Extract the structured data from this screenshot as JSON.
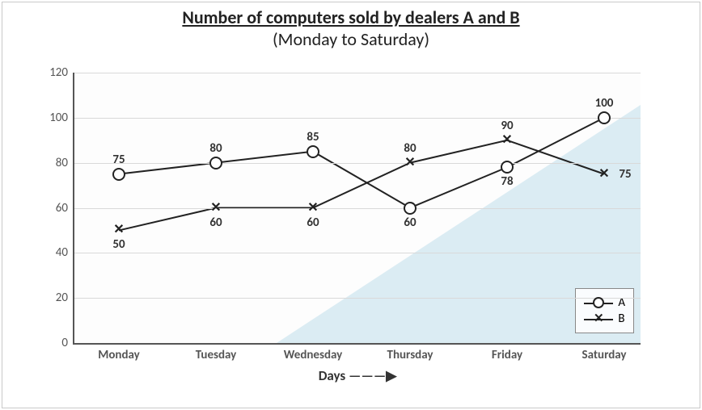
{
  "title": {
    "main": "Number of computers sold by dealers A and B",
    "sub": "(Monday to Saturday)",
    "main_fontsize": 22,
    "sub_fontsize": 22,
    "underline_main": true
  },
  "chart": {
    "type": "line",
    "categories": [
      "Monday",
      "Tuesday",
      "Wednesday",
      "Thursday",
      "Friday",
      "Saturday"
    ],
    "ylim": [
      0,
      120
    ],
    "ytick_step": 20,
    "gridline_color": "#d9d9d9",
    "axis_color": "#555555",
    "background_color": "#fdfdfd",
    "bluewash_color": "#dbecf3",
    "line_color": "#222222",
    "line_width": 2,
    "xaxis_title": "Days  ———▶",
    "label_fontsize": 15,
    "series": [
      {
        "name": "A",
        "marker": "circle",
        "values": [
          75,
          80,
          85,
          60,
          78,
          100
        ],
        "labels": [
          "75",
          "80",
          "85",
          "60",
          "78",
          "100"
        ],
        "label_pos": [
          "above",
          "above",
          "above",
          "below",
          "below",
          "above"
        ]
      },
      {
        "name": "B",
        "marker": "x",
        "values": [
          50,
          60,
          60,
          80,
          90,
          75
        ],
        "labels": [
          "50",
          "60",
          "60",
          "80",
          "90",
          "75"
        ],
        "label_pos": [
          "below",
          "below",
          "below",
          "above",
          "above",
          "right"
        ]
      }
    ],
    "marker_size": 12,
    "legend": {
      "position": "bottom-right",
      "items": [
        "A",
        "B"
      ]
    }
  }
}
